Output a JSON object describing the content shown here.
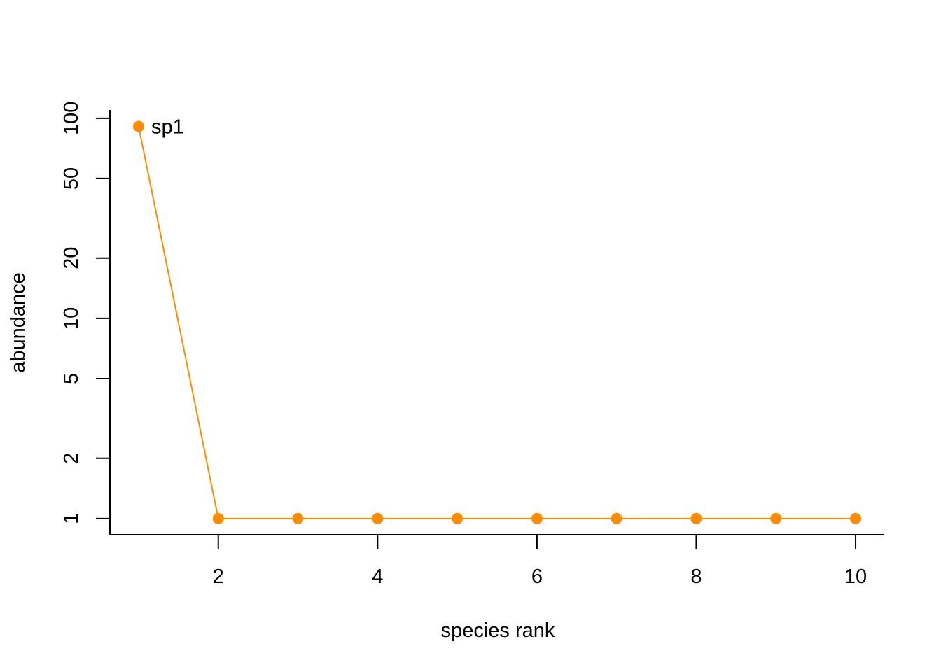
{
  "chart_data": {
    "type": "line",
    "title": "",
    "xlabel": "species rank",
    "ylabel": "abundance",
    "x": [
      1,
      2,
      3,
      4,
      5,
      6,
      7,
      8,
      9,
      10
    ],
    "series": [
      {
        "values": [
          91,
          1,
          1,
          1,
          1,
          1,
          1,
          1,
          1,
          1
        ],
        "color": "#FF8C00"
      }
    ],
    "point_labels": [
      {
        "x": 1,
        "y": 91,
        "text": "sp1"
      }
    ],
    "xlim": [
      0.64,
      10.36
    ],
    "ylim": [
      0.83,
      110
    ],
    "y_scale": "log",
    "x_ticks": [
      2,
      4,
      6,
      8,
      10
    ],
    "x_tick_labels": [
      "2",
      "4",
      "6",
      "8",
      "10"
    ],
    "y_ticks": [
      1,
      2,
      5,
      10,
      20,
      50,
      100
    ],
    "y_tick_labels": [
      "1",
      "2",
      "5",
      "10",
      "20",
      "50",
      "100"
    ],
    "grid": false,
    "legend": "none"
  }
}
